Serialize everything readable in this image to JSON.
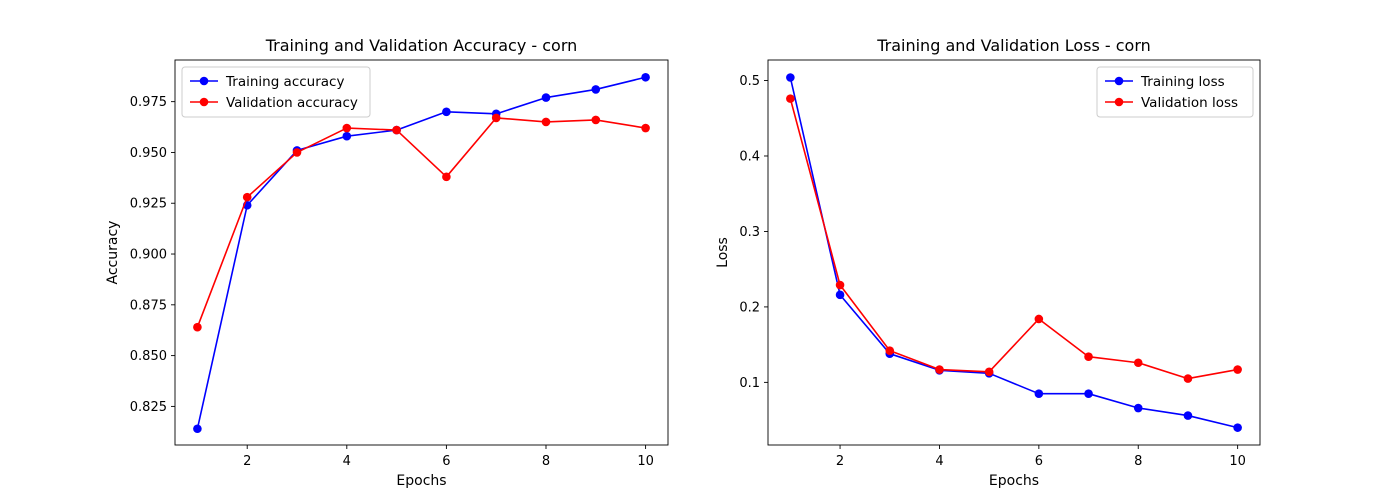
{
  "chart_data": [
    {
      "type": "line",
      "title": "Training and Validation Accuracy - corn",
      "xlabel": "Epochs",
      "ylabel": "Accuracy",
      "x": [
        1,
        2,
        3,
        4,
        5,
        6,
        7,
        8,
        9,
        10
      ],
      "xlim": [
        0.55,
        10.45
      ],
      "ylim": [
        0.806,
        0.9955
      ],
      "xticks": [
        2,
        4,
        6,
        8,
        10
      ],
      "xtick_labels": [
        "2",
        "4",
        "6",
        "8",
        "10"
      ],
      "yticks": [
        0.825,
        0.85,
        0.875,
        0.9,
        0.925,
        0.95,
        0.975
      ],
      "ytick_labels": [
        "0.825",
        "0.850",
        "0.875",
        "0.900",
        "0.925",
        "0.950",
        "0.975"
      ],
      "grid": false,
      "legend_position": "upper-left",
      "series": [
        {
          "name": "Training accuracy",
          "color": "#0000ff",
          "marker": "circle",
          "values": [
            0.814,
            0.924,
            0.951,
            0.958,
            0.961,
            0.97,
            0.969,
            0.977,
            0.981,
            0.987
          ]
        },
        {
          "name": "Validation accuracy",
          "color": "#ff0000",
          "marker": "circle",
          "values": [
            0.864,
            0.928,
            0.95,
            0.962,
            0.961,
            0.938,
            0.967,
            0.965,
            0.966,
            0.962
          ]
        }
      ]
    },
    {
      "type": "line",
      "title": "Training and Validation Loss - corn",
      "xlabel": "Epochs",
      "ylabel": "Loss",
      "x": [
        1,
        2,
        3,
        4,
        5,
        6,
        7,
        8,
        9,
        10
      ],
      "xlim": [
        0.55,
        10.45
      ],
      "ylim": [
        0.017,
        0.5272
      ],
      "xticks": [
        2,
        4,
        6,
        8,
        10
      ],
      "xtick_labels": [
        "2",
        "4",
        "6",
        "8",
        "10"
      ],
      "yticks": [
        0.1,
        0.2,
        0.3,
        0.4,
        0.5
      ],
      "ytick_labels": [
        "0.1",
        "0.2",
        "0.3",
        "0.4",
        "0.5"
      ],
      "grid": false,
      "legend_position": "upper-right",
      "series": [
        {
          "name": "Training loss",
          "color": "#0000ff",
          "marker": "circle",
          "values": [
            0.504,
            0.216,
            0.138,
            0.116,
            0.112,
            0.085,
            0.085,
            0.066,
            0.056,
            0.04
          ]
        },
        {
          "name": "Validation loss",
          "color": "#ff0000",
          "marker": "circle",
          "values": [
            0.476,
            0.229,
            0.142,
            0.117,
            0.114,
            0.184,
            0.134,
            0.126,
            0.105,
            0.117
          ]
        }
      ]
    }
  ]
}
